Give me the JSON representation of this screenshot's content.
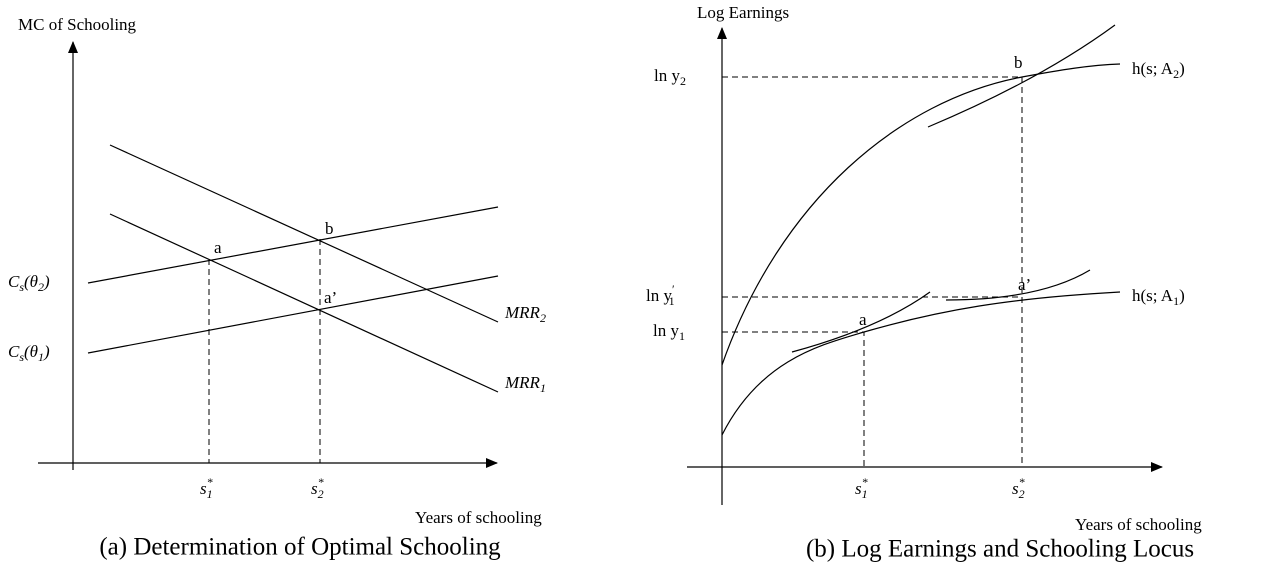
{
  "panels": [
    {
      "y_axis_label": "MC of Schooling",
      "x_axis_label": "Years of schooling",
      "caption": "(a) Determination of Optimal Schooling",
      "points": {
        "a": "a",
        "b": "b",
        "a_prime": "a’"
      },
      "math": {
        "c_theta2": [
          {
            "text": "C",
            "sub": "s"
          },
          {
            "text": "(θ",
            "sub": "2"
          },
          {
            "text": ")"
          }
        ],
        "c_theta1": [
          {
            "text": "C",
            "sub": "s"
          },
          {
            "text": "(θ",
            "sub": "1"
          },
          {
            "text": ")"
          }
        ],
        "mrr2": [
          {
            "text": "MRR",
            "sub": "2"
          }
        ],
        "mrr1": [
          {
            "text": "MRR",
            "sub": "1"
          }
        ],
        "s1": [
          {
            "text": "s",
            "sup": "*",
            "sub": "1"
          }
        ],
        "s2": [
          {
            "text": "s",
            "sup": "*",
            "sub": "2"
          }
        ]
      }
    },
    {
      "y_axis_label": "Log Earnings",
      "x_axis_label": "Years of schooling",
      "caption": "(b) Log Earnings and Schooling Locus",
      "points": {
        "a": "a",
        "b": "b",
        "a_prime": "a’"
      },
      "math": {
        "ln_y2": [
          {
            "text": "ln y",
            "sub": "2"
          }
        ],
        "ln_y1_prime": [
          {
            "text": "ln y",
            "sup": "′",
            "sub": "1"
          }
        ],
        "ln_y1": [
          {
            "text": "ln y",
            "sub": "1"
          }
        ],
        "h_a2": [
          {
            "text": "h(s; A",
            "sub": "2"
          },
          {
            "text": ")"
          }
        ],
        "h_a1": [
          {
            "text": "h(s; A",
            "sub": "1"
          },
          {
            "text": ")"
          }
        ],
        "s1": [
          {
            "text": "s",
            "sup": "*",
            "sub": "1"
          }
        ],
        "s2": [
          {
            "text": "s",
            "sup": "*",
            "sub": "2"
          }
        ]
      }
    }
  ]
}
